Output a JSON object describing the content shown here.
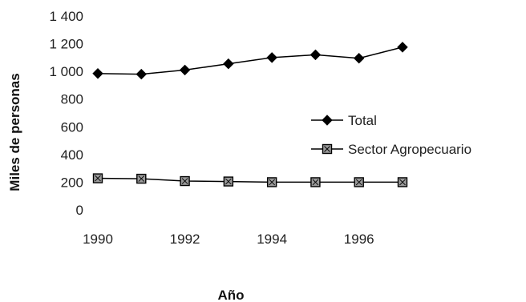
{
  "chart_data": {
    "type": "line",
    "title": "",
    "xlabel": "Año",
    "ylabel": "Miles de personas",
    "x": [
      1990,
      1991,
      1992,
      1993,
      1994,
      1995,
      1996,
      1997
    ],
    "x_tick_labels": [
      "1990",
      "1992",
      "1994",
      "1996"
    ],
    "y_tick_labels": [
      "0",
      "200",
      "400",
      "600",
      "800",
      "1 000",
      "1 200",
      "1 400"
    ],
    "y_ticks": [
      0,
      200,
      400,
      600,
      800,
      1000,
      1200,
      1400
    ],
    "ylim": [
      0,
      1400
    ],
    "xlim": [
      1990,
      1997
    ],
    "grid": false,
    "legend_position": "right",
    "series": [
      {
        "name": "Total",
        "marker": "diamond",
        "color": "#000000",
        "values": [
          985,
          980,
          1010,
          1055,
          1100,
          1120,
          1095,
          1175
        ]
      },
      {
        "name": "Sector  Agropecuario",
        "marker": "square",
        "color": "#000000",
        "values": [
          228,
          225,
          208,
          205,
          200,
          200,
          200,
          200
        ]
      }
    ]
  }
}
